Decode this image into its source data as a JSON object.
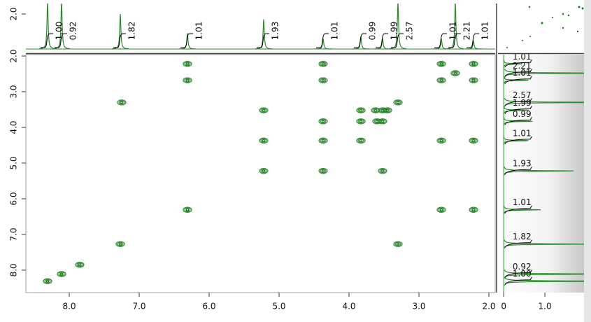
{
  "chart_data": {
    "type": "contour",
    "color": "#1c7a1c",
    "x": [
      6.31,
      4.37,
      2.68,
      2.22,
      6.31,
      4.37,
      2.68,
      2.22,
      2.48,
      7.25,
      3.3,
      5.22,
      3.83,
      3.62,
      3.52,
      3.45,
      4.37,
      3.83,
      3.52,
      3.6,
      5.22,
      4.37,
      3.83,
      2.68,
      2.22,
      5.22,
      4.37,
      3.52,
      6.31,
      2.68,
      2.22,
      7.27,
      3.3,
      7.85,
      8.11,
      8.31
    ],
    "values": [
      2.22,
      2.22,
      2.22,
      2.22,
      2.68,
      2.68,
      2.68,
      2.68,
      2.48,
      3.3,
      3.3,
      3.52,
      3.52,
      3.52,
      3.52,
      3.52,
      3.83,
      3.83,
      3.83,
      3.83,
      4.37,
      4.37,
      4.37,
      4.37,
      4.37,
      5.22,
      5.22,
      5.22,
      6.31,
      6.31,
      6.31,
      7.27,
      7.27,
      7.85,
      8.11,
      8.31
    ],
    "xlim": [
      8.62,
      1.91
    ],
    "ylim": [
      1.96,
      8.63
    ],
    "xticks": [
      {
        "value": 8,
        "label": "8.0"
      },
      {
        "value": 7,
        "label": "7.0"
      },
      {
        "value": 6,
        "label": "6.0"
      },
      {
        "value": 5,
        "label": "5.0"
      },
      {
        "value": 4,
        "label": "4.0"
      },
      {
        "value": 3,
        "label": "3.0"
      },
      {
        "value": 2,
        "label": "2.0"
      }
    ],
    "yticks": [
      {
        "value": 2,
        "label": "2.0"
      },
      {
        "value": 3,
        "label": "3.0"
      },
      {
        "value": 4,
        "label": "4.0"
      },
      {
        "value": 5,
        "label": "5.0"
      },
      {
        "value": 6,
        "label": "6.0"
      },
      {
        "value": 7,
        "label": "7.0"
      },
      {
        "value": 8,
        "label": "8.0"
      }
    ],
    "projection": {
      "type": "line",
      "color": "#2a8a2a",
      "peaks": [
        8.31,
        8.11,
        7.27,
        6.31,
        5.22,
        4.37,
        3.83,
        3.52,
        3.3,
        2.68,
        2.48,
        2.22
      ],
      "values": [
        2.7,
        2.7,
        2.0,
        0.9,
        1.7,
        0.6,
        0.7,
        0.6,
        2.7,
        0.6,
        2.7,
        0.45
      ],
      "integrals": [
        1.0,
        0.92,
        1.82,
        1.01,
        1.93,
        1.01,
        0.99,
        1.99,
        2.57,
        1.01,
        2.21,
        1.01
      ],
      "integral_labels": [
        "1.00",
        "0.92",
        "1.82",
        "1.01",
        "1.93",
        "1.01",
        "0.99",
        "1.99",
        "2.57",
        "1.01",
        "2.21",
        "1.01"
      ],
      "ylim": [
        0,
        2.6
      ],
      "yticks": [
        {
          "value": 2,
          "label": "2.0"
        }
      ],
      "xlim_right": [
        -0.14,
        1.95
      ],
      "xticks_right": [
        0,
        {
          "value": 1,
          "label": "1.0"
        }
      ]
    }
  }
}
